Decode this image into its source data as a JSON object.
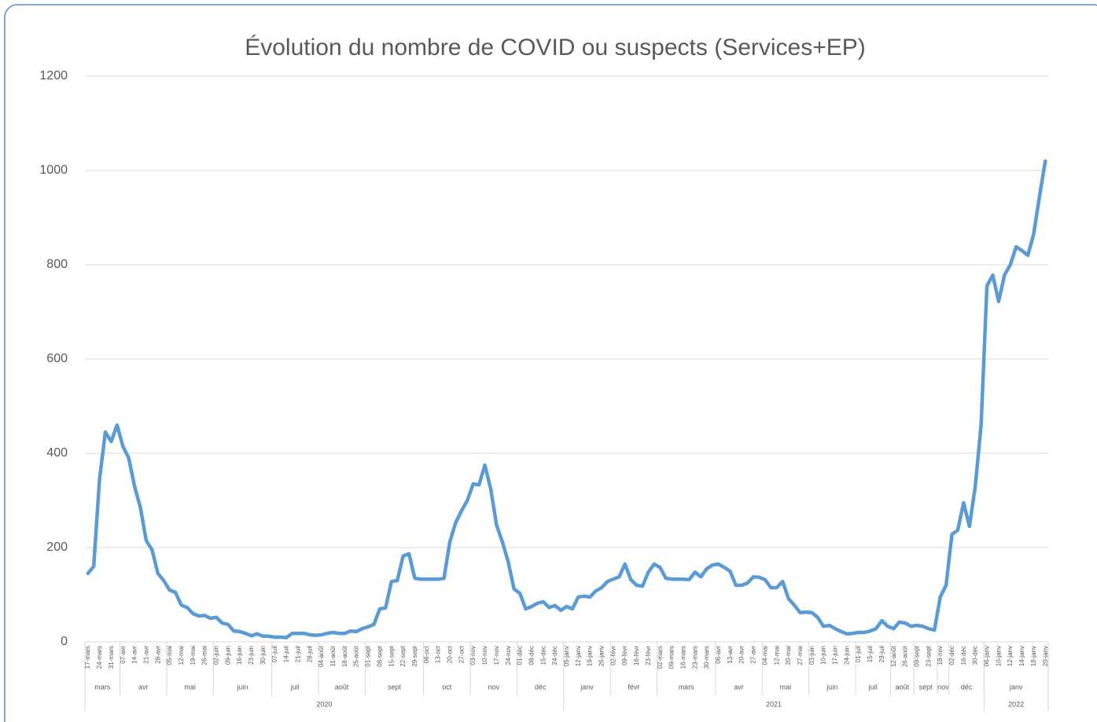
{
  "chart_data": {
    "type": "line",
    "title": "Évolution du nombre de COVID ou suspects (Services+EP)",
    "color": "#5b9bd5",
    "grid": true,
    "ylim": [
      0,
      1200
    ],
    "yticks": [
      0,
      200,
      400,
      600,
      800,
      1000,
      1200
    ],
    "groups": [
      {
        "year": "2020",
        "months": [
          {
            "month": "mars",
            "categories": [
              "17-mars",
              null,
              "24-mars",
              null,
              "31-mars",
              null
            ]
          },
          {
            "month": "avr",
            "categories": [
              "07-avr",
              null,
              "14-avr",
              null,
              "21-avr",
              null,
              "28-avr",
              null
            ]
          },
          {
            "month": "mai",
            "categories": [
              "05-mai",
              null,
              "12-mai",
              null,
              "19-mai",
              null,
              "26-mai",
              null
            ]
          },
          {
            "month": "juin",
            "categories": [
              "02-juin",
              null,
              "09-juin",
              null,
              "16-juin",
              null,
              "23-juin",
              null,
              "30-juin",
              null
            ]
          },
          {
            "month": "juil",
            "categories": [
              "07-juil",
              null,
              "14-juil",
              null,
              "21-juil",
              null,
              "28-juil",
              null
            ]
          },
          {
            "month": "août",
            "categories": [
              "04-août",
              null,
              "11-août",
              null,
              "18-août",
              null,
              "25-août",
              null
            ]
          },
          {
            "month": "sept",
            "categories": [
              "01-sept",
              null,
              "08-sept",
              null,
              "15-sept",
              null,
              "22-sept",
              null,
              "29-sept",
              null
            ]
          },
          {
            "month": "oct",
            "categories": [
              "06-oct",
              null,
              "13-oct",
              null,
              "20-oct",
              null,
              "27-oct",
              null
            ]
          },
          {
            "month": "nov",
            "categories": [
              "03-nov",
              null,
              "10-nov",
              null,
              "17-nov",
              null,
              "24-nov",
              null
            ]
          },
          {
            "month": "déc",
            "categories": [
              "01-déc",
              null,
              "08-déc",
              null,
              "15-déc",
              null,
              "24-déc",
              null
            ]
          }
        ]
      },
      {
        "year": "2021",
        "months": [
          {
            "month": "janv",
            "categories": [
              "05-janv",
              null,
              "12-janv",
              null,
              "19-janv",
              null,
              "26-janv",
              null
            ]
          },
          {
            "month": "févr",
            "categories": [
              "02-févr",
              null,
              "09-févr",
              null,
              "16-févr",
              null,
              "23-févr",
              null
            ]
          },
          {
            "month": "mars",
            "categories": [
              "02-mars",
              null,
              "09-mars",
              null,
              "16-mars",
              null,
              "23-mars",
              null,
              "30-mars",
              null
            ]
          },
          {
            "month": "avr",
            "categories": [
              "06-avr",
              null,
              "13-avr",
              null,
              "20-avr",
              null,
              "27-avr",
              null
            ]
          },
          {
            "month": "mai",
            "categories": [
              "04-mai",
              null,
              "12-mai",
              null,
              "20-mai",
              null,
              "27-mai",
              null
            ]
          },
          {
            "month": "juin",
            "categories": [
              "03-juin",
              null,
              "10-juin",
              null,
              "17-juin",
              null,
              "24-juin",
              null
            ]
          },
          {
            "month": "juil",
            "categories": [
              "01-juil",
              null,
              "15-juil",
              null,
              "29-juil",
              null
            ]
          },
          {
            "month": "août",
            "categories": [
              "12-août",
              null,
              "26-août",
              null
            ]
          },
          {
            "month": "sept",
            "categories": [
              "09-sept",
              null,
              "23-sept",
              null
            ]
          },
          {
            "month": "nov",
            "categories": [
              "18-nov",
              null
            ]
          },
          {
            "month": "déc",
            "categories": [
              "02-déc",
              null,
              "16-déc",
              null,
              "30-déc",
              null
            ]
          }
        ]
      },
      {
        "year": "2022",
        "months": [
          {
            "month": "janv",
            "categories": [
              "06-janv",
              null,
              "10-janv",
              null,
              "12-janv",
              null,
              "14-janv",
              null,
              "18-janv",
              null,
              "20-janv"
            ]
          }
        ]
      }
    ],
    "values": [
      145,
      160,
      345,
      445,
      425,
      460,
      415,
      390,
      330,
      285,
      215,
      195,
      145,
      130,
      110,
      105,
      78,
      73,
      60,
      55,
      56,
      50,
      52,
      40,
      37,
      23,
      22,
      18,
      13,
      17,
      12,
      12,
      10,
      10,
      9,
      18,
      18,
      18,
      15,
      14,
      15,
      18,
      20,
      18,
      18,
      23,
      22,
      28,
      32,
      37,
      70,
      72,
      128,
      130,
      182,
      187,
      135,
      133,
      133,
      133,
      133,
      135,
      212,
      253,
      278,
      300,
      335,
      333,
      375,
      325,
      248,
      212,
      170,
      112,
      103,
      70,
      75,
      82,
      85,
      73,
      77,
      67,
      75,
      70,
      95,
      97,
      95,
      108,
      115,
      128,
      133,
      138,
      165,
      132,
      120,
      118,
      148,
      165,
      158,
      135,
      133,
      133,
      133,
      132,
      148,
      138,
      155,
      163,
      165,
      158,
      150,
      120,
      120,
      125,
      138,
      137,
      132,
      115,
      115,
      128,
      92,
      78,
      62,
      63,
      62,
      52,
      33,
      35,
      28,
      22,
      17,
      18,
      20,
      20,
      23,
      28,
      45,
      33,
      28,
      42,
      40,
      33,
      35,
      33,
      28,
      25,
      95,
      120,
      228,
      237,
      295,
      245,
      330,
      460,
      755,
      778,
      722,
      778,
      800,
      838,
      830,
      820,
      865,
      945,
      1020
    ]
  }
}
